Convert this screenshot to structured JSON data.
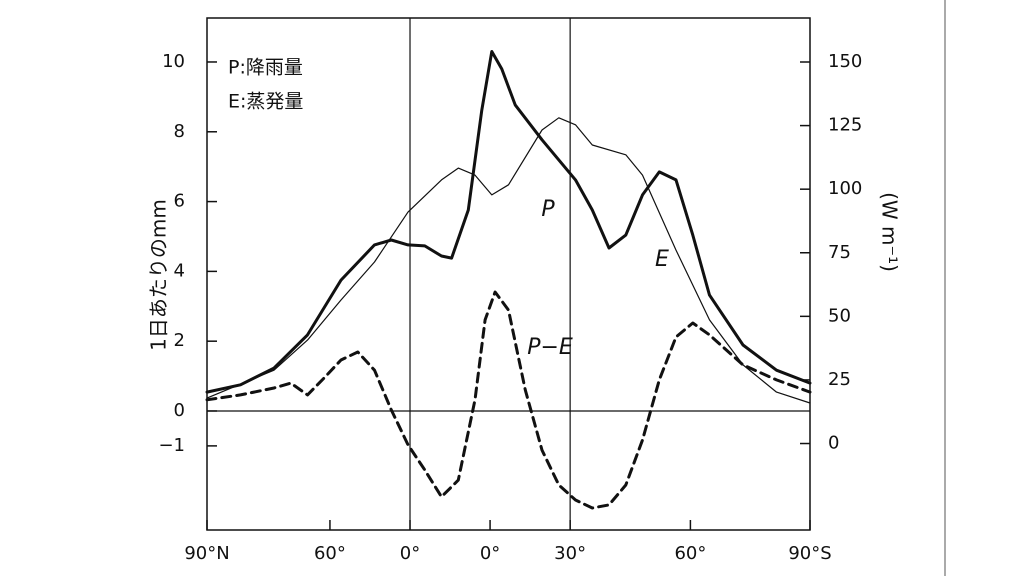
{
  "chart_data": {
    "type": "line",
    "annotations": [
      "P:降雨量",
      "E:蒸発量"
    ],
    "ylabel": "1日あたりのmm",
    "y2label": "(W m⁻¹)",
    "xlim": [
      0,
      180
    ],
    "xticks": [
      {
        "value": 0,
        "label": "90°N"
      },
      {
        "value": 36.7,
        "label": "60°"
      },
      {
        "value": 60.6,
        "label": "0°"
      },
      {
        "value": 84.5,
        "label": "0°"
      },
      {
        "value": 108.4,
        "label": "30°"
      },
      {
        "value": 144.3,
        "label": "60°"
      },
      {
        "value": 180,
        "label": "90°S"
      }
    ],
    "ylim": [
      -3.41,
      11.26
    ],
    "yticks": [
      {
        "value": -1,
        "label": "−1"
      },
      0,
      2,
      4,
      6,
      8,
      10
    ],
    "y2lim": [
      -34,
      167.3
    ],
    "y2ticks": [
      0,
      25,
      50,
      75,
      100,
      125,
      150
    ],
    "series": [
      {
        "name": "P",
        "color": "#111111",
        "width": 3,
        "dash": false,
        "x": [
          0,
          10,
          20,
          30,
          40,
          50,
          55,
          60,
          65,
          70,
          73,
          78,
          82,
          85,
          88,
          92,
          100,
          110,
          115,
          120,
          125,
          130,
          135,
          140,
          145,
          150,
          160,
          170,
          180
        ],
        "values": [
          0.54,
          0.75,
          1.23,
          2.18,
          3.75,
          4.76,
          4.9,
          4.76,
          4.73,
          4.44,
          4.38,
          5.76,
          8.6,
          10.3,
          9.8,
          8.77,
          7.77,
          6.62,
          5.76,
          4.67,
          5.04,
          6.19,
          6.85,
          6.62,
          5.04,
          3.32,
          1.89,
          1.17,
          0.8
        ]
      },
      {
        "name": "E",
        "color": "#111111",
        "width": 1.2,
        "dash": false,
        "x": [
          0,
          20,
          30,
          40,
          50,
          60,
          70,
          75,
          80,
          85,
          90,
          100,
          105,
          110,
          115,
          125,
          130,
          140,
          150,
          160,
          170,
          180
        ],
        "values": [
          0.37,
          1.17,
          2.03,
          3.18,
          4.27,
          5.7,
          6.62,
          6.96,
          6.76,
          6.19,
          6.48,
          8.05,
          8.4,
          8.2,
          7.62,
          7.34,
          6.76,
          4.61,
          2.61,
          1.32,
          0.54,
          0.23
        ]
      },
      {
        "name": "P−E",
        "color": "#111111",
        "width": 3,
        "dash": true,
        "x": [
          0,
          10,
          20,
          25,
          30,
          35,
          40,
          45,
          50,
          55,
          60,
          65,
          70,
          75,
          80,
          83,
          86,
          90,
          95,
          100,
          105,
          110,
          115,
          120,
          125,
          130,
          135,
          140,
          145,
          150,
          160,
          170,
          180
        ],
        "values": [
          0.32,
          0.46,
          0.66,
          0.8,
          0.46,
          0.95,
          1.46,
          1.69,
          1.17,
          0.03,
          -0.97,
          -1.69,
          -2.46,
          -1.98,
          0.32,
          2.61,
          3.41,
          2.89,
          0.6,
          -1.12,
          -2.12,
          -2.55,
          -2.78,
          -2.69,
          -2.12,
          -0.83,
          0.89,
          2.12,
          2.52,
          2.18,
          1.32,
          0.89,
          0.54
        ]
      }
    ]
  }
}
